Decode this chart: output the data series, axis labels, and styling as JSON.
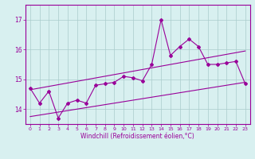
{
  "x": [
    0,
    1,
    2,
    3,
    4,
    5,
    6,
    7,
    8,
    9,
    10,
    11,
    12,
    13,
    14,
    15,
    16,
    17,
    18,
    19,
    20,
    21,
    22,
    23
  ],
  "y_main": [
    14.7,
    14.2,
    14.6,
    13.7,
    14.2,
    14.3,
    14.2,
    14.8,
    14.85,
    14.9,
    15.1,
    15.05,
    14.95,
    15.5,
    17.0,
    15.8,
    16.1,
    16.35,
    16.1,
    15.5,
    15.5,
    15.55,
    15.6,
    14.85
  ],
  "line_color": "#990099",
  "bg_color": "#d8f0f0",
  "grid_color": "#aacccc",
  "ylim": [
    13.5,
    17.5
  ],
  "yticks": [
    14,
    15,
    16,
    17
  ],
  "xlim": [
    -0.5,
    23.5
  ],
  "xlabel": "Windchill (Refroidissement éolien,°C)",
  "upper_line": [
    14.65,
    15.95
  ],
  "lower_line": [
    13.75,
    14.9
  ],
  "x_line_start": 0,
  "x_line_end": 23
}
